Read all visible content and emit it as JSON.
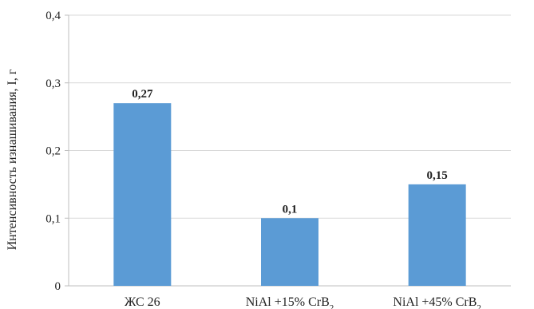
{
  "chart_data": {
    "type": "bar",
    "categories": [
      "ЖС 26",
      "NiAl +15% CrB",
      "NiAl +45% CrB"
    ],
    "category_subscripts": [
      "",
      "2",
      "2"
    ],
    "values": [
      0.27,
      0.1,
      0.15
    ],
    "data_labels": [
      "0,27",
      "0,1",
      "0,15"
    ],
    "ylabel": "Интенсивность изнашивания, I, г",
    "ylim": [
      0,
      0.4
    ],
    "yticks": [
      0,
      0.1,
      0.2,
      0.3,
      0.4
    ],
    "ytick_labels": [
      "0",
      "0,1",
      "0,2",
      "0,3",
      "0,4"
    ],
    "grid": true,
    "bar_color": "#5b9bd5",
    "grid_color": "#d9d9d9"
  }
}
